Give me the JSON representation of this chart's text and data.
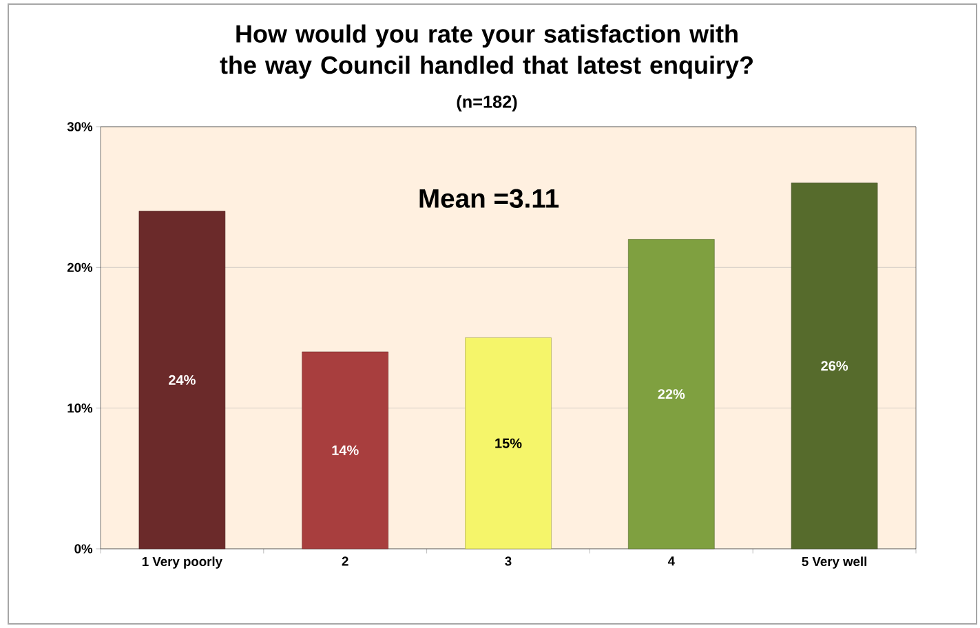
{
  "chart_data": {
    "type": "bar",
    "title": "How would you rate your satisfaction with the way Council handled that latest enquiry?",
    "subtitle": "(n=182)",
    "categories": [
      "1 Very poorly",
      "2",
      "3",
      "4",
      "5 Very well"
    ],
    "values": [
      24,
      14,
      15,
      22,
      26
    ],
    "colors": [
      "#6b2a2a",
      "#a83e3e",
      "#f5f56a",
      "#7fa040",
      "#566b2c"
    ],
    "value_labels": [
      "24%",
      "14%",
      "15%",
      "22%",
      "26%"
    ],
    "ylim": [
      0,
      30
    ],
    "yticks": [
      {
        "value": 0,
        "label": "0%"
      },
      {
        "value": 10,
        "label": "10%"
      },
      {
        "value": 20,
        "label": "20%"
      },
      {
        "value": 30,
        "label": "30%"
      }
    ],
    "grid": "y",
    "annotations": [
      "Mean =3.11"
    ]
  }
}
